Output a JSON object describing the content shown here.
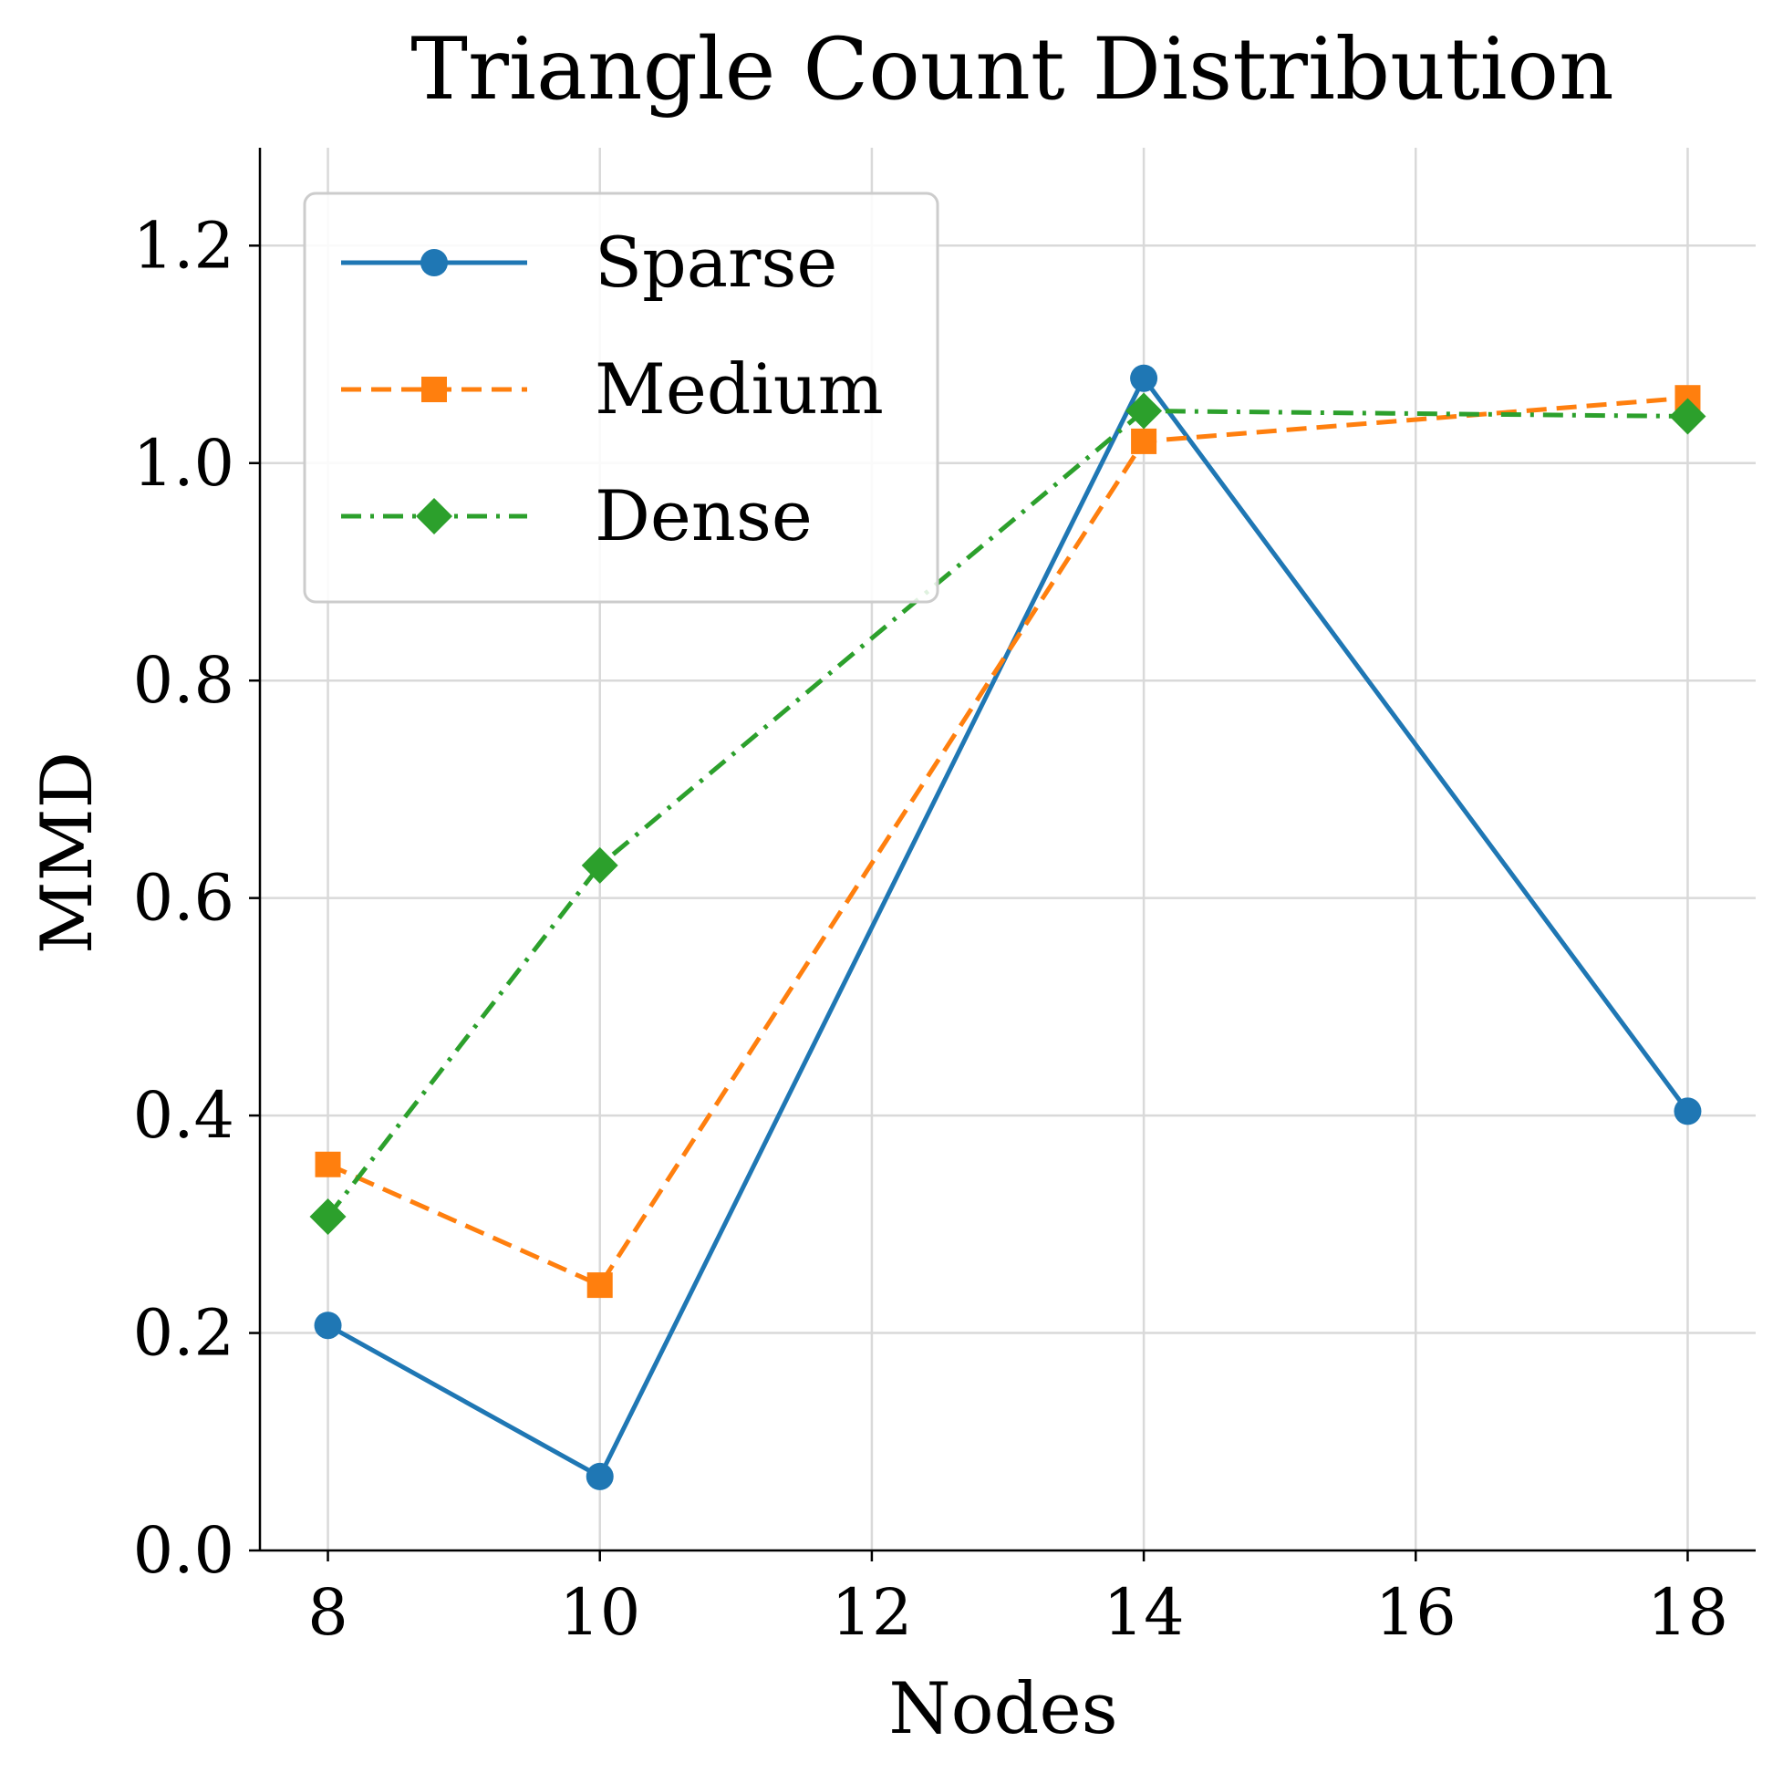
{
  "chart_data": {
    "type": "line",
    "title": "Triangle Count Distribution",
    "xlabel": "Nodes",
    "ylabel": "MMD",
    "x": [
      8,
      10,
      14,
      18
    ],
    "xlim": [
      7.5,
      18.5
    ],
    "ylim": [
      0.0,
      1.29
    ],
    "xticks": [
      8,
      10,
      12,
      14,
      16,
      18
    ],
    "xtick_labels": [
      "8",
      "10",
      "12",
      "14",
      "16",
      "18"
    ],
    "yticks": [
      0.0,
      0.2,
      0.4,
      0.6,
      0.8,
      1.0,
      1.2
    ],
    "ytick_labels": [
      "0.0",
      "0.2",
      "0.4",
      "0.6",
      "0.8",
      "1.0",
      "1.2"
    ],
    "grid": true,
    "legend_position": "upper-left",
    "series": [
      {
        "name": "Sparse",
        "values": [
          0.207,
          0.068,
          1.078,
          0.404
        ],
        "color": "#1f77b4",
        "line_style": "solid",
        "marker": "circle"
      },
      {
        "name": "Medium",
        "values": [
          0.355,
          0.244,
          1.02,
          1.06
        ],
        "color": "#ff7f0e",
        "line_style": "dashed",
        "marker": "square"
      },
      {
        "name": "Dense",
        "values": [
          0.307,
          0.63,
          1.048,
          1.043
        ],
        "color": "#2ca02c",
        "line_style": "dashdot",
        "marker": "diamond"
      }
    ]
  }
}
